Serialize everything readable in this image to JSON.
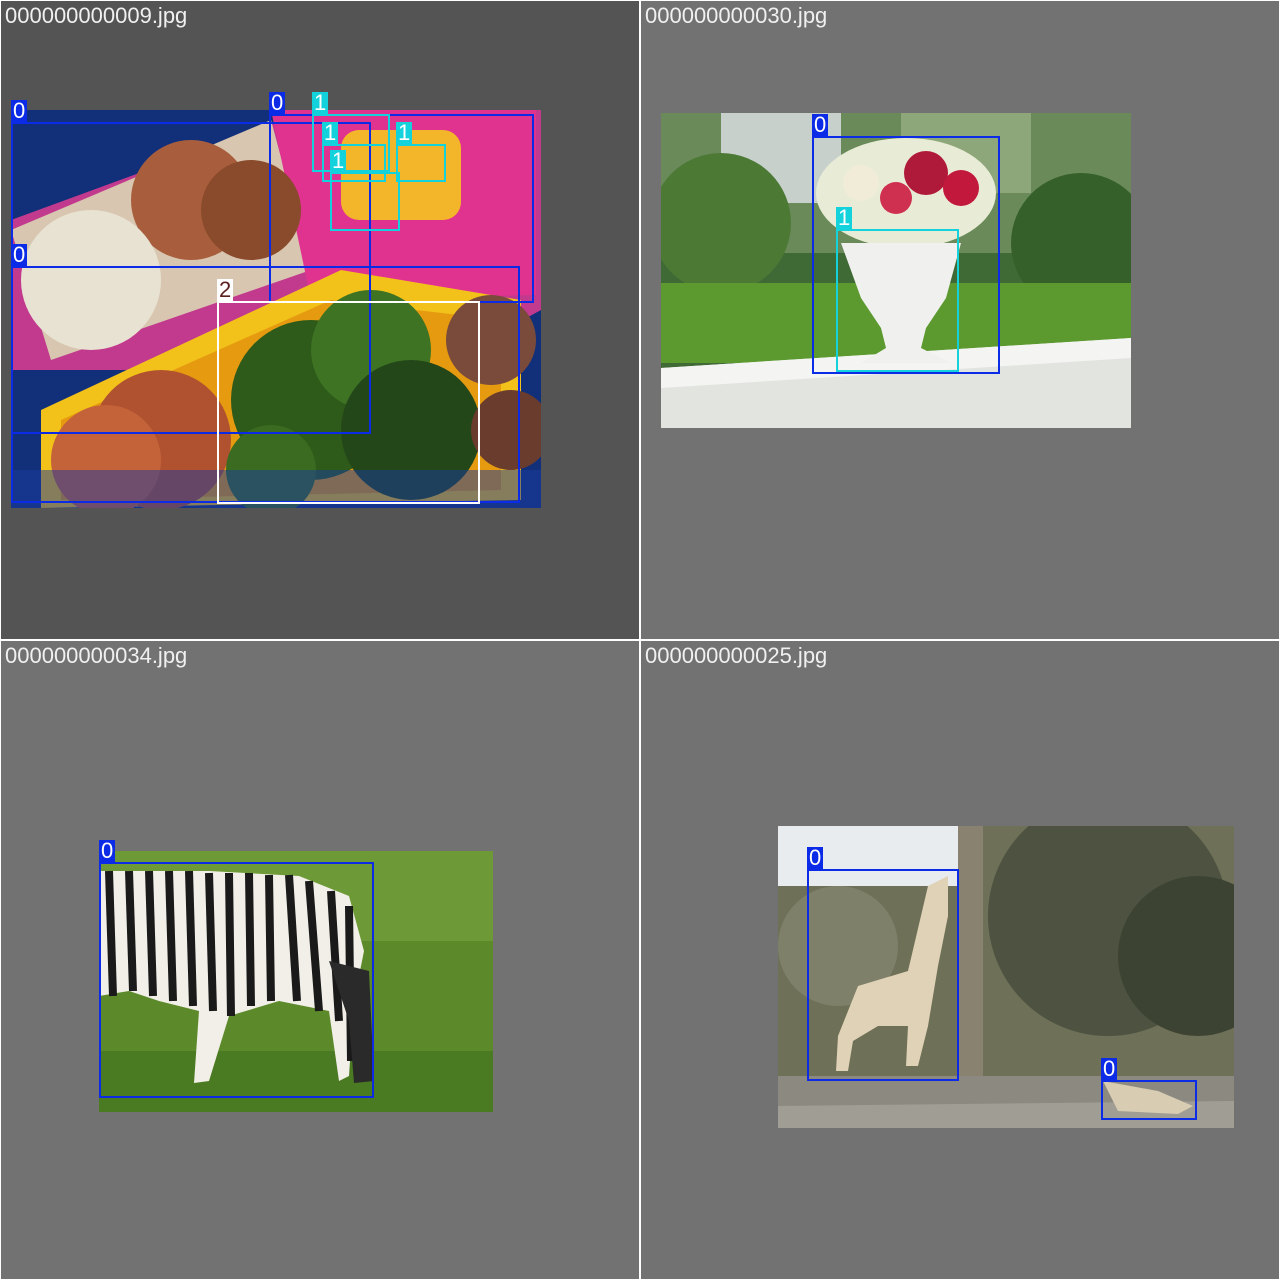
{
  "colors": {
    "class_0": "#0b2be6",
    "class_1": "#14d2dc",
    "class_2": "#ffffff",
    "label_text": "#ffffff",
    "label_text_dark": "#5a1f1f",
    "filename_text": "#f0f0f0"
  },
  "tiles": [
    {
      "filename": "000000000009.jpg",
      "labels": [
        "0",
        "0",
        "0",
        "1",
        "1",
        "1",
        "1",
        "2"
      ]
    },
    {
      "filename": "000000000030.jpg",
      "labels": [
        "0",
        "1"
      ]
    },
    {
      "filename": "000000000034.jpg",
      "labels": [
        "0"
      ]
    },
    {
      "filename": "000000000025.jpg",
      "labels": [
        "0",
        "0"
      ]
    }
  ]
}
